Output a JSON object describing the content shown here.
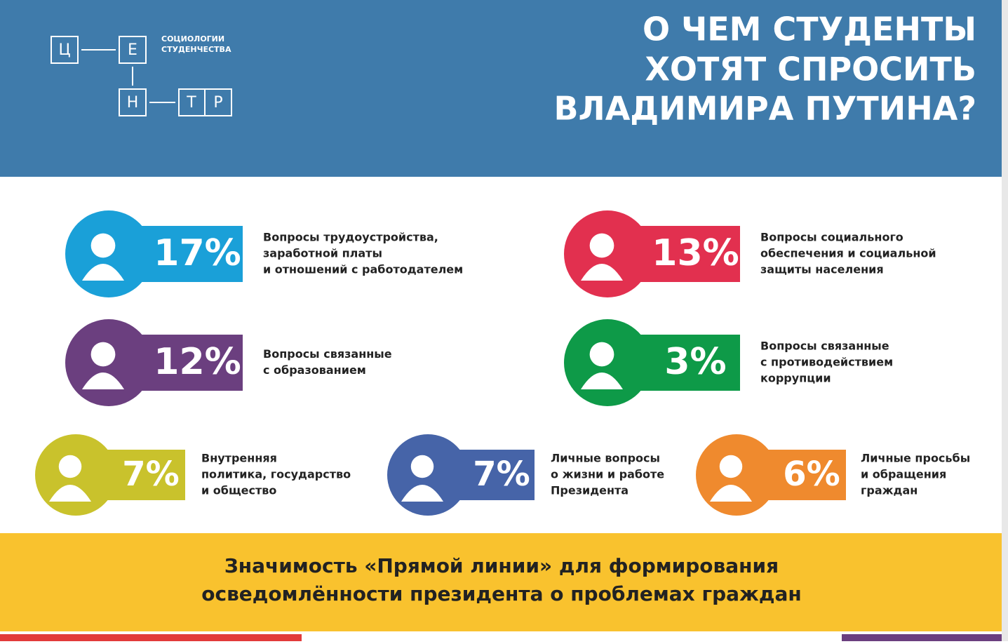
{
  "header": {
    "logo": {
      "letters": [
        "Ц",
        "Е",
        "Н",
        "Т",
        "Р"
      ],
      "text": [
        "СОЦИОЛОГИИ",
        "СТУДЕНЧЕСТВА"
      ]
    },
    "title": [
      "О ЧЕМ СТУДЕНТЫ",
      "ХОТЯТ СПРОСИТЬ",
      "ВЛАДИМИРА ПУТИНА?"
    ]
  },
  "items": [
    {
      "percent": "17%",
      "label": [
        "Вопросы трудоустройства,",
        "заработной платы",
        "и отношений с работодателем"
      ]
    },
    {
      "percent": "13%",
      "label": [
        "Вопросы социального",
        "обеспечения и социальной",
        "защиты населения"
      ]
    },
    {
      "percent": "12%",
      "label": [
        "Вопросы связанные",
        "с образованием"
      ]
    },
    {
      "percent": "3%",
      "label": [
        "Вопросы связанные",
        "с противодействием",
        "коррупции"
      ]
    },
    {
      "percent": "7%",
      "label": [
        "Внутренняя",
        "политика, государство",
        "и общество"
      ]
    },
    {
      "percent": "7%",
      "label": [
        "Личные вопросы",
        "о жизни и работе",
        "Президента"
      ]
    },
    {
      "percent": "6%",
      "label": [
        "Личные просьбы",
        "и обращения",
        "граждан"
      ]
    }
  ],
  "footer": {
    "title": [
      "Значимость «Прямой линии» для формирования",
      "осведомлённости президента о проблемах граждан"
    ]
  }
}
